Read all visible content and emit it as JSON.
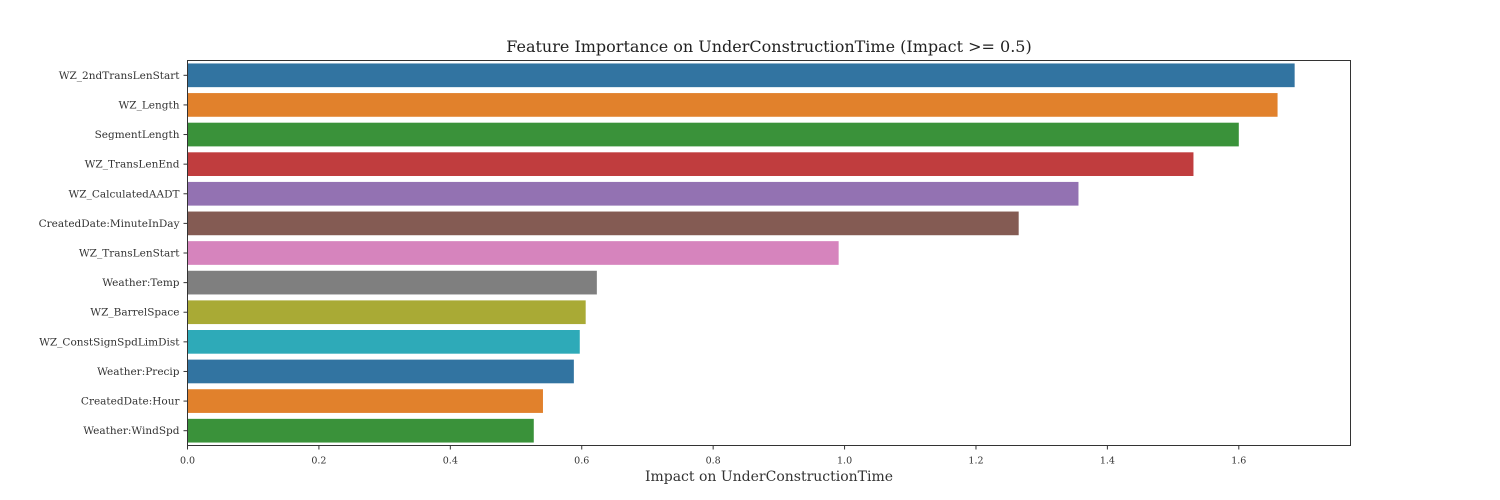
{
  "chart_data": {
    "type": "bar",
    "orientation": "horizontal",
    "title": "Feature Importance on UnderConstructionTime (Impact >= 0.5)",
    "xlabel": "Impact on UnderConstructionTime",
    "ylabel": "",
    "xlim": [
      0,
      1.77
    ],
    "xticks": [
      0.0,
      0.2,
      0.4,
      0.6,
      0.8,
      1.0,
      1.2,
      1.4,
      1.6
    ],
    "xtick_labels": [
      "0.0",
      "0.2",
      "0.4",
      "0.6",
      "0.8",
      "1.0",
      "1.2",
      "1.4",
      "1.6"
    ],
    "grid": false,
    "legend": "none",
    "categories": [
      "WZ_2ndTransLenStart",
      "WZ_Length",
      "SegmentLength",
      "WZ_TransLenEnd",
      "WZ_CalculatedAADT",
      "CreatedDate:MinuteInDay",
      "WZ_TransLenStart",
      "Weather:Temp",
      "WZ_BarrelSpace",
      "WZ_ConstSignSpdLimDist",
      "Weather:Precip",
      "CreatedDate:Hour",
      "Weather:WindSpd"
    ],
    "values": [
      1.685,
      1.659,
      1.6,
      1.531,
      1.356,
      1.265,
      0.991,
      0.623,
      0.606,
      0.597,
      0.588,
      0.541,
      0.527
    ],
    "colors": [
      "#3274a1",
      "#e1812c",
      "#3a923a",
      "#c03d3e",
      "#9372b2",
      "#845b53",
      "#d684bd",
      "#7f7f7f",
      "#a9aa35",
      "#2eaab8",
      "#3274a1",
      "#e1812c",
      "#3a923a"
    ]
  }
}
